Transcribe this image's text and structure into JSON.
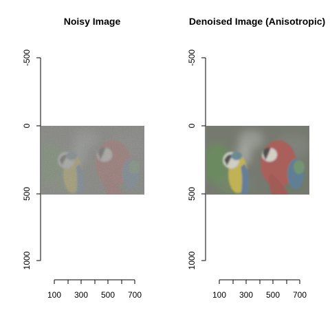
{
  "panels": [
    {
      "title": "Noisy Image",
      "y_ticks": [
        "-500",
        "0",
        "500",
        "1000"
      ],
      "x_ticks": [
        "100",
        "300",
        "500",
        "700"
      ],
      "content": "noisy macaw parrots photo"
    },
    {
      "title": "Denoised Image (Anisotropic)",
      "y_ticks": [
        "-500",
        "0",
        "500",
        "1000"
      ],
      "x_ticks": [
        "100",
        "300",
        "500",
        "700"
      ],
      "content": "denoised macaw parrots photo"
    }
  ],
  "colors": {
    "background": "#ffffff",
    "axis": "#000000",
    "photo_bg": "#5f6358",
    "foliage": "#5a7a4a",
    "blue_yellow_macaw_yellow": "#c9b43a",
    "blue_yellow_macaw_blue": "#4a6a8a",
    "scarlet_macaw_red": "#a8403c"
  }
}
